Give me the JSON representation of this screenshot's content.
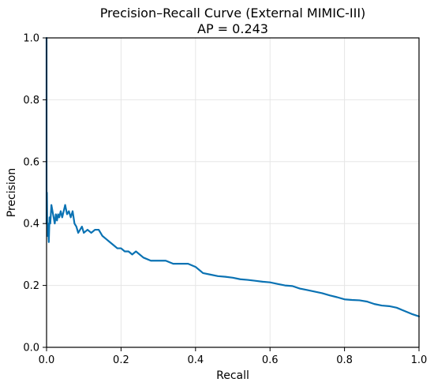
{
  "chart_data": {
    "type": "line",
    "title": "Precision–Recall Curve (External MIMIC-III)",
    "subtitle": "AP = 0.243",
    "xlabel": "Recall",
    "ylabel": "Precision",
    "xlim": [
      0,
      1
    ],
    "ylim": [
      0,
      1
    ],
    "grid": true,
    "x_ticks": [
      0.0,
      0.2,
      0.4,
      0.6,
      0.8,
      1.0
    ],
    "y_ticks": [
      0.0,
      0.2,
      0.4,
      0.6,
      0.8,
      1.0
    ],
    "x_tick_labels": [
      "0.0",
      "0.2",
      "0.4",
      "0.6",
      "0.8",
      "1.0"
    ],
    "y_tick_labels": [
      "0.0",
      "0.2",
      "0.4",
      "0.6",
      "0.8",
      "1.0"
    ],
    "series": [
      {
        "color": "#0a72b3",
        "x": [
          0.0,
          0.0,
          0.001,
          0.002,
          0.004,
          0.006,
          0.008,
          0.01,
          0.013,
          0.016,
          0.019,
          0.022,
          0.025,
          0.028,
          0.031,
          0.034,
          0.038,
          0.042,
          0.046,
          0.05,
          0.055,
          0.06,
          0.065,
          0.07,
          0.075,
          0.08,
          0.085,
          0.09,
          0.095,
          0.1,
          0.11,
          0.12,
          0.13,
          0.14,
          0.15,
          0.16,
          0.17,
          0.18,
          0.19,
          0.2,
          0.21,
          0.22,
          0.23,
          0.24,
          0.26,
          0.28,
          0.3,
          0.32,
          0.34,
          0.36,
          0.38,
          0.4,
          0.42,
          0.44,
          0.46,
          0.48,
          0.5,
          0.52,
          0.54,
          0.56,
          0.58,
          0.6,
          0.62,
          0.64,
          0.66,
          0.68,
          0.7,
          0.72,
          0.74,
          0.76,
          0.78,
          0.8,
          0.82,
          0.84,
          0.86,
          0.88,
          0.9,
          0.92,
          0.94,
          0.96,
          0.98,
          1.0
        ],
        "y": [
          1.0,
          0.4,
          0.5,
          0.36,
          0.4,
          0.34,
          0.42,
          0.4,
          0.46,
          0.44,
          0.42,
          0.4,
          0.43,
          0.41,
          0.43,
          0.42,
          0.44,
          0.42,
          0.44,
          0.46,
          0.43,
          0.44,
          0.42,
          0.44,
          0.4,
          0.39,
          0.37,
          0.38,
          0.39,
          0.37,
          0.38,
          0.37,
          0.38,
          0.38,
          0.36,
          0.35,
          0.34,
          0.33,
          0.32,
          0.32,
          0.31,
          0.31,
          0.3,
          0.31,
          0.29,
          0.28,
          0.28,
          0.28,
          0.27,
          0.27,
          0.27,
          0.26,
          0.24,
          0.235,
          0.23,
          0.228,
          0.225,
          0.22,
          0.218,
          0.215,
          0.212,
          0.21,
          0.205,
          0.2,
          0.198,
          0.19,
          0.185,
          0.18,
          0.175,
          0.168,
          0.162,
          0.155,
          0.153,
          0.152,
          0.148,
          0.14,
          0.135,
          0.133,
          0.128,
          0.118,
          0.108,
          0.1
        ]
      }
    ]
  }
}
